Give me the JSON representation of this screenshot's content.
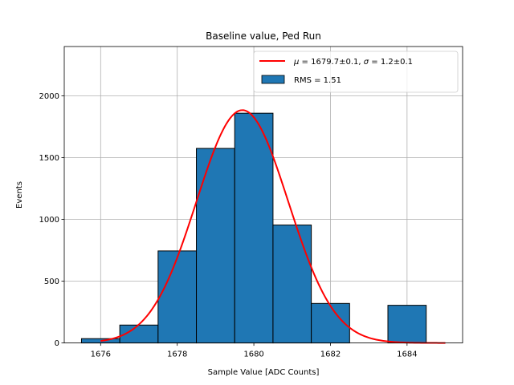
{
  "chart_data": {
    "type": "bar",
    "title": "Baseline value, Ped Run",
    "xlabel": "Sample Value [ADC Counts]",
    "ylabel": "Events",
    "xlim": [
      1675.05,
      1685.45
    ],
    "ylim": [
      0,
      2400
    ],
    "xticks": [
      1676,
      1678,
      1680,
      1682,
      1684
    ],
    "yticks": [
      0,
      500,
      1000,
      1500,
      2000
    ],
    "grid": true,
    "histogram": {
      "name": "RMS = 1.51",
      "bin_edges": [
        1675.5,
        1676.5,
        1677.5,
        1678.5,
        1679.5,
        1680.5,
        1681.5,
        1682.5,
        1683.5,
        1684.5
      ],
      "counts": [
        35,
        145,
        745,
        1575,
        1860,
        955,
        320,
        0,
        305
      ],
      "color": "#1f77b4",
      "edgecolor": "#000000"
    },
    "fit": {
      "name": "μ = 1679.7±0.1, σ = 1.2±0.1",
      "mu": 1679.7,
      "sigma": 1.2,
      "amplitude": 1885,
      "x_range": [
        1676,
        1685
      ],
      "color": "#ff0000"
    },
    "legend": {
      "placement": "top-right",
      "entries": [
        {
          "type": "line",
          "mu_label": "μ",
          "mu_text": " = 1679.7±0.1, ",
          "sigma_label": "σ",
          "sigma_text": " = 1.2±0.1"
        },
        {
          "type": "patch",
          "label": "RMS = 1.51"
        }
      ]
    }
  }
}
